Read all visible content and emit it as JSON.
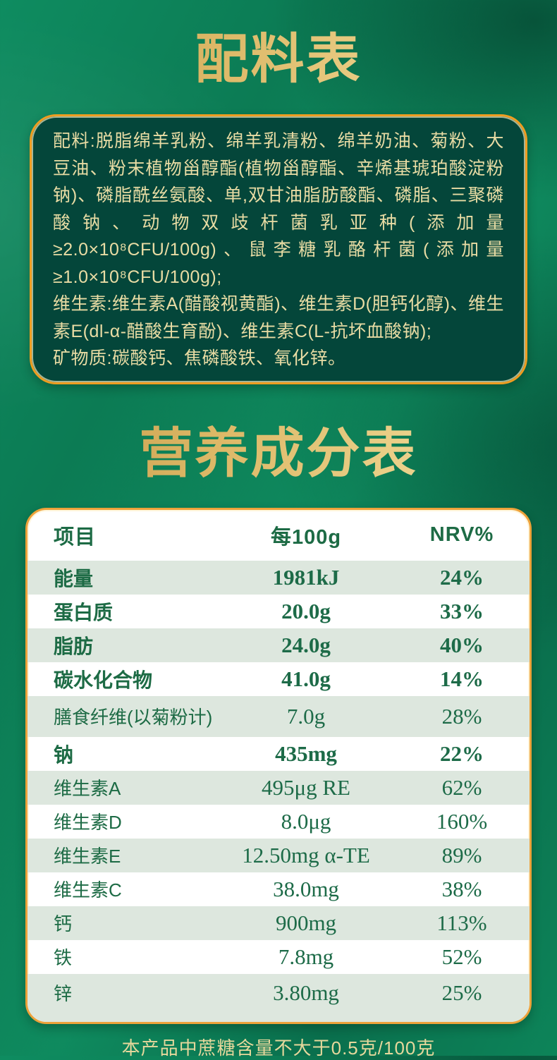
{
  "colors": {
    "background_green": "#0d8159",
    "ingredients_box_green": "#04463a",
    "gold_border": "#ef9d20",
    "gold_title": "#ddb968",
    "pale_gold_text": "#e9dca4",
    "table_text_green": "#1d6b45",
    "row_stripe": "#dde7de"
  },
  "ingredients_section": {
    "title": "配料表",
    "paragraphs": [
      "配料:脱脂绵羊乳粉、绵羊乳清粉、绵羊奶油、菊粉、大豆油、粉末植物甾醇酯(植物甾醇酯、辛烯基琥珀酸淀粉钠)、磷脂酰丝氨酸、单,双甘油脂肪酸酯、磷脂、三聚磷酸钠、动物双歧杆菌乳亚种(添加量≥2.0×10⁸CFU/100g)、鼠李糖乳酪杆菌(添加量≥1.0×10⁸CFU/100g);",
      "维生素:维生素A(醋酸视黄酯)、维生素D(胆钙化醇)、维生素E(dl-α-醋酸生育酚)、维生素C(L-抗坏血酸钠);",
      "矿物质:碳酸钙、焦磷酸铁、氧化锌。"
    ]
  },
  "nutrition_section": {
    "title": "营养成分表",
    "table": {
      "headers": [
        "项目",
        "每100g",
        "NRV%"
      ],
      "rows": [
        {
          "name": "能量",
          "value": "1981kJ",
          "nrv": "24%",
          "bold": true
        },
        {
          "name": "蛋白质",
          "value": "20.0g",
          "nrv": "33%",
          "bold": true
        },
        {
          "name": "脂肪",
          "value": "24.0g",
          "nrv": "40%",
          "bold": true
        },
        {
          "name": "碳水化合物",
          "value": "41.0g",
          "nrv": "14%",
          "bold": true
        },
        {
          "name": "膳食纤维(以菊粉计)",
          "value": "7.0g",
          "nrv": "28%",
          "bold": false
        },
        {
          "name": "钠",
          "value": "435mg",
          "nrv": "22%",
          "bold": true
        },
        {
          "name": "维生素A",
          "value": "495μg RE",
          "nrv": "62%",
          "bold": false
        },
        {
          "name": "维生素D",
          "value": "8.0μg",
          "nrv": "160%",
          "bold": false
        },
        {
          "name": "维生素E",
          "value": "12.50mg α-TE",
          "nrv": "89%",
          "bold": false
        },
        {
          "name": "维生素C",
          "value": "38.0mg",
          "nrv": "38%",
          "bold": false
        },
        {
          "name": "钙",
          "value": "900mg",
          "nrv": "113%",
          "bold": false
        },
        {
          "name": "铁",
          "value": "7.8mg",
          "nrv": "52%",
          "bold": false
        },
        {
          "name": "锌",
          "value": "3.80mg",
          "nrv": "25%",
          "bold": false
        }
      ]
    },
    "footnote": "本产品中蔗糖含量不大于0.5克/100克"
  }
}
